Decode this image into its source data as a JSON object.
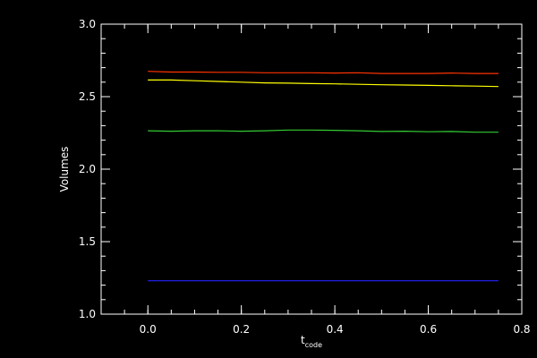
{
  "chart_data": {
    "type": "line",
    "title": "",
    "xlabel": "t",
    "xlabel_subscript": "code",
    "ylabel": "Volumes",
    "xlim": [
      -0.1,
      0.8
    ],
    "ylim": [
      1.0,
      3.0
    ],
    "xticks": [
      0.0,
      0.2,
      0.4,
      0.6,
      0.8
    ],
    "yticks": [
      1.0,
      1.5,
      2.0,
      2.5,
      3.0
    ],
    "xtick_labels": [
      "0.0",
      "0.2",
      "0.4",
      "0.6",
      "0.8"
    ],
    "ytick_labels": [
      "1.0",
      "1.5",
      "2.0",
      "2.5",
      "3.0"
    ],
    "grid": false,
    "legend": "none",
    "background": "#000000",
    "axis_color": "#ffffff",
    "series": [
      {
        "color": "#ff3300",
        "x": [
          0.0,
          0.05,
          0.1,
          0.15,
          0.2,
          0.25,
          0.3,
          0.35,
          0.4,
          0.45,
          0.5,
          0.55,
          0.6,
          0.65,
          0.7,
          0.75
        ],
        "y": [
          2.675,
          2.67,
          2.67,
          2.668,
          2.668,
          2.665,
          2.665,
          2.665,
          2.663,
          2.665,
          2.66,
          2.66,
          2.66,
          2.663,
          2.66,
          2.66
        ]
      },
      {
        "color": "#ffff00",
        "x": [
          0.0,
          0.05,
          0.1,
          0.15,
          0.2,
          0.25,
          0.3,
          0.35,
          0.4,
          0.45,
          0.5,
          0.55,
          0.6,
          0.65,
          0.7,
          0.75
        ],
        "y": [
          2.615,
          2.615,
          2.61,
          2.605,
          2.6,
          2.595,
          2.593,
          2.59,
          2.588,
          2.585,
          2.582,
          2.58,
          2.578,
          2.575,
          2.573,
          2.57
        ]
      },
      {
        "color": "#33cc33",
        "x": [
          0.0,
          0.05,
          0.1,
          0.15,
          0.2,
          0.25,
          0.3,
          0.35,
          0.4,
          0.45,
          0.5,
          0.55,
          0.6,
          0.65,
          0.7,
          0.75
        ],
        "y": [
          2.265,
          2.262,
          2.265,
          2.265,
          2.262,
          2.265,
          2.27,
          2.27,
          2.268,
          2.265,
          2.26,
          2.262,
          2.258,
          2.26,
          2.255,
          2.255
        ]
      },
      {
        "color": "#2222ff",
        "x": [
          0.0,
          0.05,
          0.1,
          0.15,
          0.2,
          0.25,
          0.3,
          0.35,
          0.4,
          0.45,
          0.5,
          0.55,
          0.6,
          0.65,
          0.7,
          0.75
        ],
        "y": [
          1.23,
          1.23,
          1.23,
          1.23,
          1.23,
          1.23,
          1.23,
          1.23,
          1.23,
          1.23,
          1.23,
          1.23,
          1.23,
          1.23,
          1.23,
          1.23
        ]
      }
    ]
  }
}
